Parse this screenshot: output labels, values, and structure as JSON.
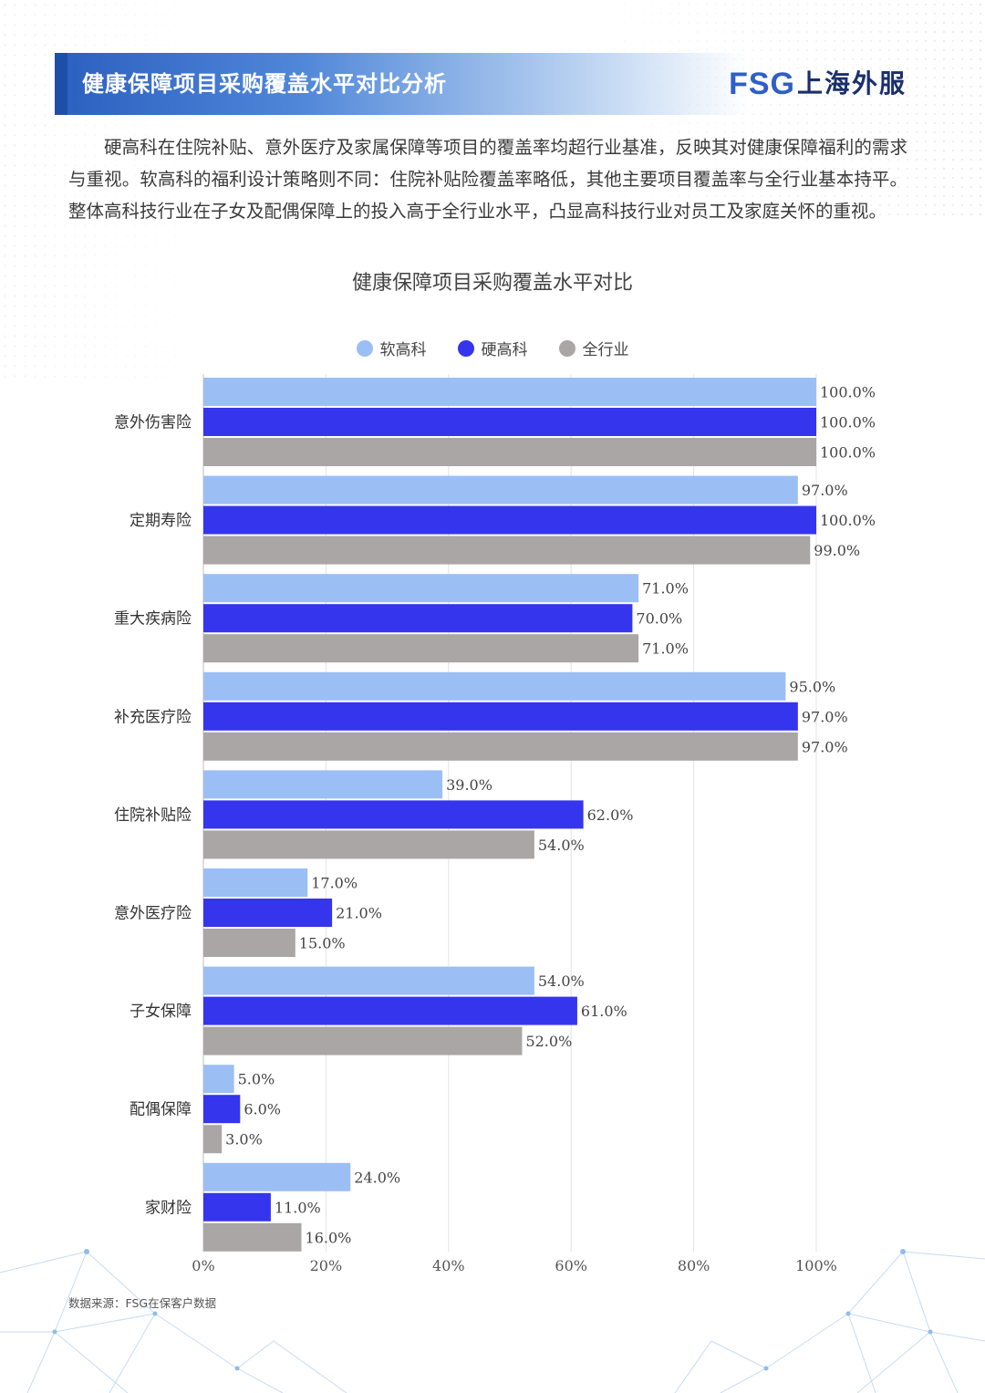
{
  "header": {
    "title": "健康保障项目采购覆盖水平对比分析",
    "logo_mark": "FSG",
    "logo_text": "上海外服"
  },
  "intro": "硬高科在住院补贴、意外医疗及家属保障等项目的覆盖率均超行业基准，反映其对健康保障福利的需求与重视。软高科的福利设计策略则不同：住院补贴险覆盖率略低，其他主要项目覆盖率与全行业基本持平。整体高科技行业在子女及配偶保障上的投入高于全行业水平，凸显高科技行业对员工及家庭关怀的重视。",
  "source": "数据来源：FSG在保客户数据",
  "colors": {
    "soft": "#9bbff5",
    "hard": "#3535ee",
    "all": "#aaa6a6",
    "brand": "#2f5fc4"
  },
  "chart_data": {
    "type": "bar",
    "orientation": "horizontal",
    "title": "健康保障项目采购覆盖水平对比",
    "categories": [
      "意外伤害险",
      "定期寿险",
      "重大疾病险",
      "补充医疗险",
      "住院补贴险",
      "意外医疗险",
      "子女保障",
      "配偶保障",
      "家财险"
    ],
    "series": [
      {
        "name": "软高科",
        "values": [
          100.0,
          97.0,
          71.0,
          95.0,
          39.0,
          17.0,
          54.0,
          5.0,
          24.0
        ]
      },
      {
        "name": "硬高科",
        "values": [
          100.0,
          100.0,
          70.0,
          97.0,
          62.0,
          21.0,
          61.0,
          6.0,
          11.0
        ]
      },
      {
        "name": "全行业",
        "values": [
          100.0,
          99.0,
          71.0,
          97.0,
          54.0,
          15.0,
          52.0,
          3.0,
          16.0
        ]
      }
    ],
    "xlim": [
      0,
      100
    ],
    "x_ticks": [
      "0%",
      "20%",
      "40%",
      "60%",
      "80%",
      "100%"
    ],
    "grid": true,
    "legend_position": "top-center"
  }
}
